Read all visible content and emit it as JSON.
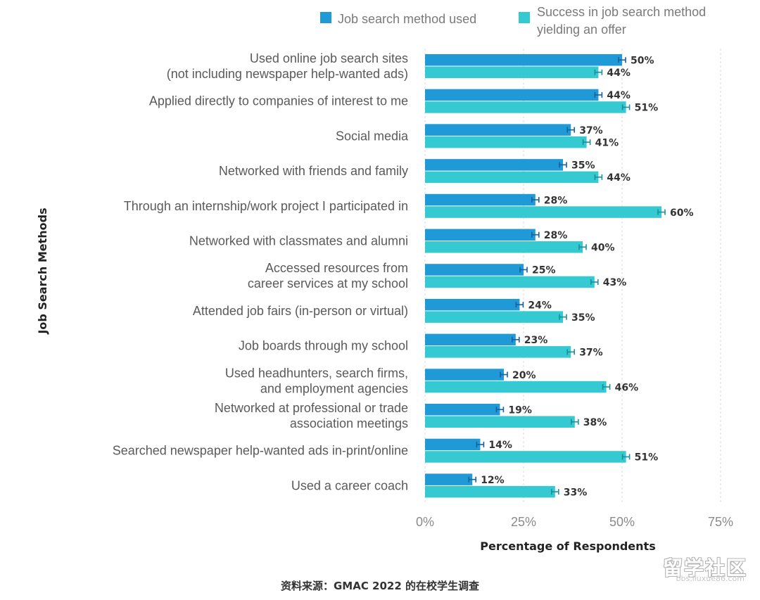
{
  "colors": {
    "used": "#1f9ad6",
    "success": "#35c9d1",
    "error_bar_used": "#1a5f9e",
    "error_bar_success": "#1b8f96",
    "gridline": "#d8d8d8"
  },
  "legend": {
    "used_label": "Job search method used",
    "success_label_line1": "Success in job search method",
    "success_label_line2": "yielding an offer",
    "position": "top-right"
  },
  "source_caption": "资料来源：GMAC 2022 的在校学生调查",
  "watermark": {
    "main": "留学社区",
    "sub": "bbs.liuxue86.com"
  },
  "chart_data": {
    "type": "bar",
    "orientation": "horizontal",
    "xlabel": "Percentage of Respondents",
    "ylabel": "Job Search Methods",
    "xlim": [
      0,
      75
    ],
    "ticks": [
      0,
      25,
      50,
      75
    ],
    "tick_labels": [
      "0%",
      "25%",
      "50%",
      "75%"
    ],
    "grid": true,
    "error_bars": true,
    "categories": [
      [
        "Used online job search sites",
        "(not including newspaper help-wanted ads)"
      ],
      [
        "Applied directly to companies of interest to me"
      ],
      [
        "Social media"
      ],
      [
        "Networked with friends and family"
      ],
      [
        "Through an internship/work project I participated in"
      ],
      [
        "Networked with classmates and alumni"
      ],
      [
        "Accessed resources from",
        "career services at my school"
      ],
      [
        "Attended job fairs (in-person or virtual)"
      ],
      [
        "Job boards through my school"
      ],
      [
        "Used headhunters, search firms,",
        "and employment agencies"
      ],
      [
        "Networked at professional or trade",
        "association meetings"
      ],
      [
        "Searched newspaper help-wanted ads in-print/online"
      ],
      [
        "Used a career coach"
      ]
    ],
    "series": [
      {
        "name": "Job search method used",
        "values": [
          50,
          44,
          37,
          35,
          28,
          28,
          25,
          24,
          23,
          20,
          19,
          14,
          12
        ],
        "labels": [
          "50%",
          "44%",
          "37%",
          "35%",
          "28%",
          "28%",
          "25%",
          "24%",
          "23%",
          "20%",
          "19%",
          "14%",
          "12%"
        ]
      },
      {
        "name": "Success in job search method yielding an offer",
        "values": [
          44,
          51,
          41,
          44,
          60,
          40,
          43,
          35,
          37,
          46,
          38,
          51,
          33
        ],
        "labels": [
          "44%",
          "51%",
          "41%",
          "44%",
          "60%",
          "40%",
          "43%",
          "35%",
          "37%",
          "46%",
          "38%",
          "51%",
          "33%"
        ]
      }
    ]
  }
}
